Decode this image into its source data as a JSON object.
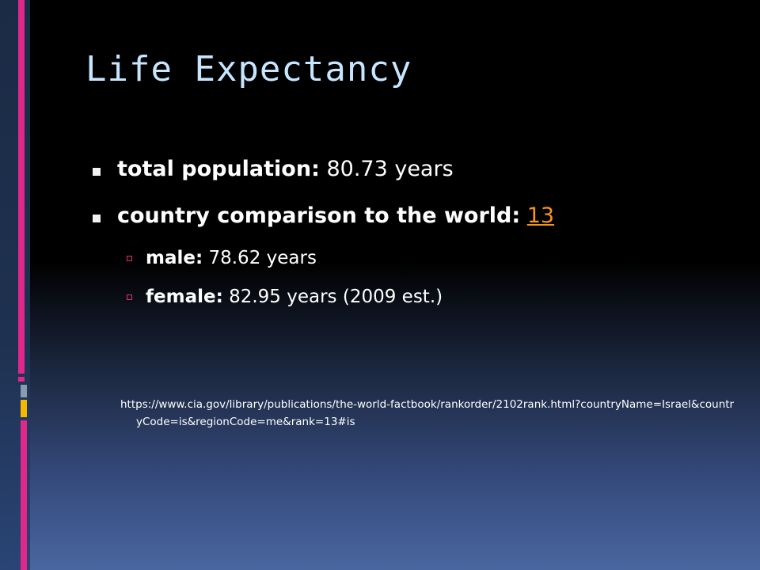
{
  "slide": {
    "title": "Life Expectancy",
    "bullets": [
      {
        "label": "total population:",
        "value": " 80.73 years"
      },
      {
        "label": "country comparison to the world:",
        "link": "13"
      }
    ],
    "sub_bullets": [
      {
        "label": "male:",
        "value": " 78.62 years"
      },
      {
        "label": "female:",
        "value": " 82.95 years (2009 est.)"
      }
    ],
    "source_url": "https://www.cia.gov/library/publications/the-world-factbook/rankorder/2102rank.html?countryName=Israel&countryCode=is&regionCode=me&rank=13#is"
  },
  "colors": {
    "title": "#c6e6ff",
    "link": "#f7941d",
    "accent_pink": "#e0288a",
    "accent_yellow": "#f5b800",
    "accent_grey": "#8a9bb0"
  }
}
